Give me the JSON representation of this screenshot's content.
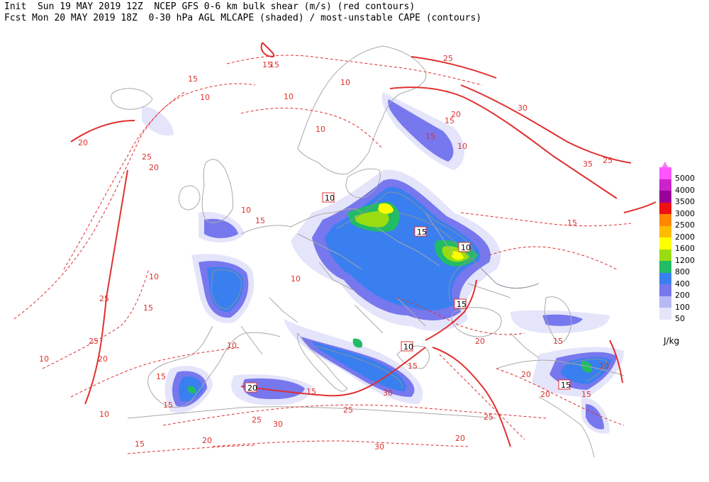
{
  "header": {
    "line1": "Init  Sun 19 MAY 2019 12Z  NCEP GFS 0-6 km bulk shear (m/s) (red contours)",
    "line2": "Fcst Mon 20 MAY 2019 18Z  0-30 hPa AGL MLCAPE (shaded) / most-unstable CAPE (contours)"
  },
  "legend": {
    "units": "J/kg",
    "top_color": "#ee82ee",
    "levels": [
      {
        "label": "5000",
        "color": "#ff55ff"
      },
      {
        "label": "4000",
        "color": "#cc22cc"
      },
      {
        "label": "3500",
        "color": "#990099"
      },
      {
        "label": "3000",
        "color": "#ee1111"
      },
      {
        "label": "2500",
        "color": "#ff8800"
      },
      {
        "label": "2000",
        "color": "#ffbb00"
      },
      {
        "label": "1600",
        "color": "#ffff00"
      },
      {
        "label": "1200",
        "color": "#99dd11"
      },
      {
        "label": "800",
        "color": "#22bb66"
      },
      {
        "label": "400",
        "color": "#3a7ff0"
      },
      {
        "label": "200",
        "color": "#7777ee"
      },
      {
        "label": "100",
        "color": "#b8b8f4"
      },
      {
        "label": "50",
        "color": "#e4e4fb"
      }
    ]
  },
  "shear_labels": [
    "10",
    "15",
    "15",
    "20",
    "25",
    "20",
    "25",
    "30",
    "35",
    "25",
    "10",
    "15",
    "10",
    "10",
    "10",
    "15",
    "25",
    "20",
    "25",
    "10",
    "15",
    "15",
    "10",
    "15",
    "10",
    "15",
    "20",
    "10",
    "15",
    "15",
    "20",
    "25",
    "30",
    "25",
    "30",
    "20",
    "30",
    "15",
    "25",
    "15",
    "10",
    "20",
    "15",
    "20",
    "10",
    "15",
    "10",
    "15",
    "20"
  ],
  "boxed_labels": [
    "15",
    "10",
    "15",
    "10",
    "20",
    "15",
    "10"
  ],
  "colors": {
    "shear": "#e03030",
    "coast": "#a9a9a9",
    "cape_contour": "#8890a0"
  }
}
